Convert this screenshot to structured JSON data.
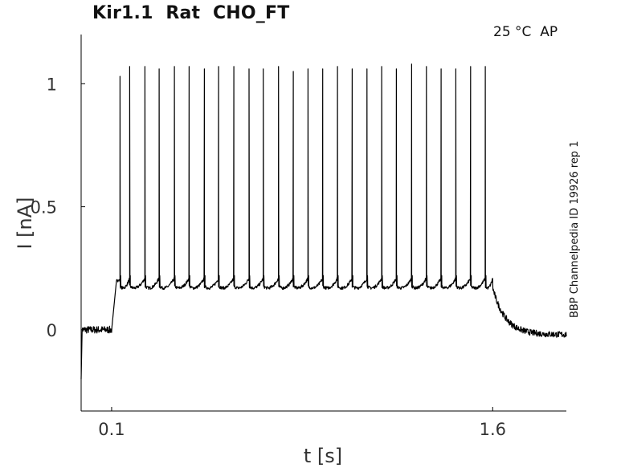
{
  "chart_data": {
    "type": "line",
    "title": "Kir1.1  Rat  CHO_FT",
    "condition": "25 °C  AP",
    "side_label": "BBP Channelpedia ID 19926 rep 1",
    "xlabel": "t [s]",
    "ylabel": "I [nA]",
    "xlim": [
      -0.02,
      1.89
    ],
    "ylim": [
      -0.33,
      1.2
    ],
    "x_ticks": [
      0.1,
      1.6
    ],
    "x_tick_labels": [
      "0.1",
      "1.6"
    ],
    "y_ticks": [
      0,
      0.5,
      1
    ],
    "y_tick_labels": [
      "0",
      "0.5",
      "1"
    ],
    "grid": false,
    "legend": "none",
    "line_color": "#000000",
    "series": [
      {
        "baseline_before": 0.0,
        "step_on": 0.1,
        "step_off": 1.6,
        "plateau_start": 0.21,
        "interspike_min": 0.17,
        "baseline_after": -0.02,
        "spike_times": [
          0.133,
          0.171,
          0.231,
          0.287,
          0.347,
          0.405,
          0.465,
          0.521,
          0.581,
          0.641,
          0.697,
          0.757,
          0.815,
          0.873,
          0.931,
          0.989,
          1.047,
          1.105,
          1.163,
          1.221,
          1.281,
          1.339,
          1.397,
          1.455,
          1.513,
          1.571
        ],
        "spike_peaks": [
          1.03,
          1.07,
          1.07,
          1.06,
          1.07,
          1.07,
          1.06,
          1.07,
          1.07,
          1.06,
          1.06,
          1.07,
          1.05,
          1.06,
          1.06,
          1.07,
          1.06,
          1.06,
          1.07,
          1.06,
          1.08,
          1.07,
          1.06,
          1.06,
          1.07,
          1.07
        ]
      }
    ]
  }
}
